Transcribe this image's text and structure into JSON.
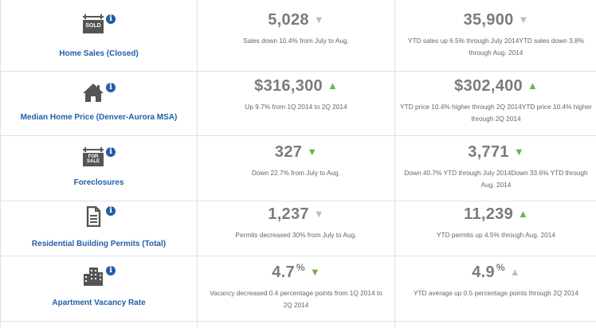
{
  "rows": [
    {
      "icon": "sold-sign-icon",
      "icon_text": "SOLD",
      "label": "Home Sales (Closed)",
      "monthly": {
        "value": "5,028",
        "arrow": "down",
        "arrow_color": "grey",
        "desc": "Sales down 10.4% from July to Aug."
      },
      "ytd": {
        "value": "35,900",
        "arrow": "down",
        "arrow_color": "grey",
        "desc": "YTD sales up 6.5% through July 2014YTD sales down 3.8% through Aug. 2014"
      }
    },
    {
      "icon": "house-icon",
      "label": "Median Home Price (Denver-Aurora MSA)",
      "monthly": {
        "value": "$316,300",
        "arrow": "up",
        "arrow_color": "green",
        "desc": "Up 9.7% from 1Q 2014 to 2Q 2014"
      },
      "ytd": {
        "value": "$302,400",
        "arrow": "up",
        "arrow_color": "green",
        "desc": "YTD price 10.4% higher through 2Q 2014YTD price 10.4% higher through 2Q 2014"
      }
    },
    {
      "icon": "for-sale-sign-icon",
      "icon_text": "FOR SALE",
      "label": "Foreclosures",
      "monthly": {
        "value": "327",
        "arrow": "down",
        "arrow_color": "green",
        "desc": "Down 22.7% from July to Aug."
      },
      "ytd": {
        "value": "3,771",
        "arrow": "down",
        "arrow_color": "green",
        "desc": "Down 40.7% YTD through July 2014Down 33.6% YTD through Aug. 2014"
      }
    },
    {
      "icon": "document-icon",
      "label": "Residential Building Permits (Total)",
      "monthly": {
        "value": "1,237",
        "arrow": "down",
        "arrow_color": "grey",
        "desc": "Permits decreased 30% from July to Aug."
      },
      "ytd": {
        "value": "11,239",
        "arrow": "up",
        "arrow_color": "green",
        "desc": "YTD permits up 4.5% through Aug. 2014"
      }
    },
    {
      "icon": "apartment-building-icon",
      "label": "Apartment Vacancy Rate",
      "monthly": {
        "value": "4.7",
        "unit": "%",
        "arrow": "down",
        "arrow_color": "green",
        "desc": "Vacancy decreased 0.4 percentage points from 1Q 2014 to 2Q 2014"
      },
      "ytd": {
        "value": "4.9",
        "unit": "%",
        "arrow": "up",
        "arrow_color": "grey",
        "desc": "YTD average up 0.5 percentage points through 2Q 2014"
      }
    }
  ],
  "info_glyph": "i",
  "colors": {
    "label": "#1f5fa6",
    "value": "#7b7b7b",
    "green_arrow": "#6fb345",
    "grey_arrow": "#bdbdbd",
    "border": "#d7e3ec"
  }
}
